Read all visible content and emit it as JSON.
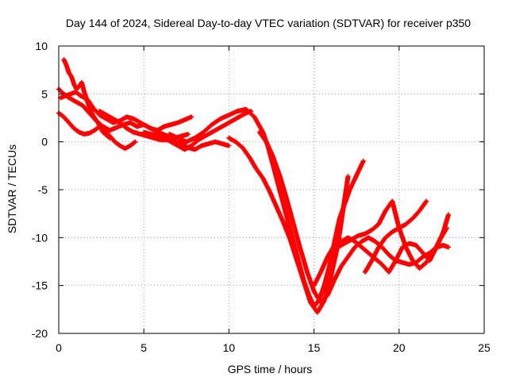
{
  "chart_data": {
    "type": "scatter",
    "title": "Day 144 of 2024, Sidereal Day-to-day VTEC variation (SDTVAR) for receiver p350",
    "xlabel": "GPS time / hours",
    "ylabel": "SDTVAR / TECUs",
    "xlim": [
      0,
      25
    ],
    "ylim": [
      -20,
      10
    ],
    "x_ticks": [
      0,
      5,
      10,
      15,
      20,
      25
    ],
    "y_ticks": [
      -20,
      -15,
      -10,
      -5,
      0,
      5,
      10
    ],
    "grid": true,
    "marker": "plus",
    "color": "#ff0000",
    "series": [
      {
        "x": [
          0.0,
          0.3,
          0.6,
          1.0,
          1.4,
          1.8,
          2.2,
          2.6,
          3.0,
          3.4,
          3.8,
          4.2,
          4.6,
          5.0,
          5.4,
          5.8,
          6.2,
          6.6,
          7.0,
          7.4,
          7.8
        ],
        "y": [
          5.5,
          5.0,
          4.6,
          4.2,
          3.8,
          3.0,
          2.2,
          1.6,
          1.2,
          1.5,
          1.8,
          2.0,
          1.6,
          1.8,
          1.4,
          1.2,
          1.6,
          1.8,
          2.0,
          2.3,
          2.6
        ]
      },
      {
        "x": [
          0.1,
          0.4,
          0.7,
          1.0,
          1.3,
          1.7,
          2.0,
          2.4,
          2.8,
          3.2,
          3.6,
          4.0,
          4.4,
          4.8,
          5.2,
          5.6,
          6.0,
          6.4,
          6.8,
          7.2,
          7.6
        ],
        "y": [
          4.6,
          4.8,
          5.0,
          5.2,
          4.8,
          4.4,
          3.6,
          2.8,
          2.4,
          2.0,
          2.2,
          2.6,
          2.4,
          2.0,
          1.6,
          1.2,
          0.9,
          0.6,
          0.4,
          0.6,
          0.8
        ]
      },
      {
        "x": [
          0.3,
          0.45,
          0.6,
          0.75,
          0.9,
          1.05,
          1.2,
          1.35,
          1.5,
          1.65,
          1.8,
          2.0,
          2.3,
          2.6,
          3.0
        ],
        "y": [
          8.6,
          8.0,
          7.2,
          6.8,
          6.0,
          5.5,
          5.8,
          6.2,
          5.2,
          4.4,
          3.6,
          2.8,
          2.0,
          1.0,
          0.4
        ]
      },
      {
        "x": [
          0.0,
          0.3,
          0.6,
          0.9,
          1.2,
          1.5,
          1.8,
          2.1,
          2.4,
          2.7,
          3.0,
          3.3,
          3.6,
          3.9,
          4.2,
          4.5
        ],
        "y": [
          3.0,
          2.6,
          2.0,
          1.4,
          1.0,
          0.8,
          0.9,
          1.2,
          1.6,
          1.2,
          0.6,
          0.0,
          -0.4,
          -0.7,
          -0.4,
          0.0
        ]
      },
      {
        "x": [
          2.4,
          2.8,
          3.2,
          3.6,
          4.0,
          4.4,
          4.8,
          5.2,
          5.6,
          6.0,
          6.4,
          6.8,
          7.2,
          7.6,
          8.0,
          8.4,
          8.8,
          9.2,
          9.6,
          10.0
        ],
        "y": [
          3.2,
          2.8,
          2.4,
          2.0,
          1.4,
          1.0,
          0.8,
          0.6,
          0.4,
          0.2,
          0.2,
          0.0,
          -0.2,
          -0.6,
          -0.8,
          -0.4,
          -0.2,
          0.0,
          -0.2,
          -0.4
        ]
      },
      {
        "x": [
          5.0,
          5.4,
          5.8,
          6.2,
          6.6,
          7.0,
          7.4,
          7.8,
          8.2,
          8.6,
          9.0,
          9.4,
          9.8,
          10.2,
          10.6,
          11.0,
          11.3
        ],
        "y": [
          1.0,
          0.8,
          0.6,
          0.4,
          0.0,
          -0.4,
          -0.8,
          -0.4,
          0.2,
          0.6,
          1.0,
          1.4,
          1.8,
          2.2,
          2.6,
          3.0,
          3.2
        ]
      },
      {
        "x": [
          6.5,
          7.0,
          7.5,
          8.0,
          8.5,
          9.0,
          9.5,
          10.0,
          10.5,
          11.0,
          11.5,
          12.0,
          12.3,
          12.6,
          12.9,
          13.2,
          13.5,
          13.8,
          14.1,
          14.4,
          14.7,
          15.0,
          15.3,
          15.6,
          15.9,
          16.2,
          16.5,
          16.8,
          17.1,
          17.5,
          17.9
        ],
        "y": [
          0.8,
          0.4,
          0.0,
          0.4,
          1.0,
          1.8,
          2.4,
          2.8,
          3.2,
          3.4,
          2.6,
          1.0,
          -0.5,
          -2.5,
          -4.5,
          -6.5,
          -8.5,
          -10.5,
          -12.5,
          -14.5,
          -16.0,
          -17.2,
          -16.5,
          -15.0,
          -13.0,
          -10.5,
          -8.0,
          -6.5,
          -5.0,
          -3.5,
          -2.0
        ]
      },
      {
        "x": [
          10.0,
          10.4,
          10.8,
          11.2,
          11.6,
          12.0,
          12.4,
          12.8,
          13.2,
          13.6,
          14.0,
          14.4,
          14.8,
          15.2,
          15.6,
          16.0,
          16.4,
          16.8,
          17.0
        ],
        "y": [
          0.4,
          0.0,
          -0.6,
          -1.6,
          -2.8,
          -3.8,
          -5.2,
          -6.8,
          -8.4,
          -10.2,
          -12.4,
          -14.6,
          -16.8,
          -17.8,
          -16.6,
          -14.0,
          -10.8,
          -6.0,
          -3.6
        ]
      },
      {
        "x": [
          11.8,
          12.2,
          12.6,
          13.0,
          13.4,
          13.8,
          14.2,
          14.6,
          15.0,
          15.4,
          15.8,
          16.2,
          16.6,
          17.0,
          17.4,
          17.8,
          18.2,
          18.6,
          19.0,
          19.4,
          19.8,
          20.2,
          20.6,
          21.0,
          21.4,
          21.8,
          22.2,
          22.6,
          22.9
        ],
        "y": [
          1.0,
          0.0,
          -1.6,
          -3.6,
          -6.0,
          -8.6,
          -11.2,
          -13.6,
          -15.6,
          -16.8,
          -16.0,
          -14.4,
          -13.0,
          -12.0,
          -11.0,
          -10.4,
          -10.0,
          -10.4,
          -11.0,
          -11.8,
          -12.4,
          -12.6,
          -12.8,
          -12.6,
          -12.0,
          -11.6,
          -11.0,
          -10.8,
          -11.0
        ]
      },
      {
        "x": [
          15.0,
          15.4,
          15.8,
          16.2,
          16.6,
          17.0,
          17.4,
          17.8,
          18.2,
          18.6,
          19.0,
          19.4,
          19.8,
          20.2,
          20.6,
          21.0,
          21.4,
          21.8,
          22.2,
          22.6,
          22.9
        ],
        "y": [
          -15.0,
          -13.6,
          -12.0,
          -10.8,
          -10.4,
          -10.0,
          -10.4,
          -11.0,
          -11.6,
          -12.2,
          -12.8,
          -13.6,
          -12.4,
          -11.0,
          -10.6,
          -10.8,
          -11.6,
          -12.4,
          -11.0,
          -9.4,
          -7.6
        ]
      },
      {
        "x": [
          16.0,
          16.4,
          16.8,
          17.2,
          17.6,
          18.0,
          18.4,
          18.8,
          19.2,
          19.6,
          20.0,
          20.4,
          20.8,
          21.2,
          21.6,
          22.0,
          22.4,
          22.8
        ],
        "y": [
          -11.6,
          -11.0,
          -10.6,
          -10.2,
          -9.8,
          -9.6,
          -9.2,
          -8.6,
          -7.2,
          -6.2,
          -9.0,
          -11.0,
          -12.4,
          -13.2,
          -12.6,
          -11.6,
          -10.2,
          -9.0
        ]
      },
      {
        "x": [
          18.0,
          18.4,
          18.8,
          19.2,
          19.6,
          20.0,
          20.4,
          20.8,
          21.2,
          21.6
        ],
        "y": [
          -13.6,
          -12.4,
          -11.0,
          -10.0,
          -9.4,
          -9.0,
          -8.6,
          -8.0,
          -7.2,
          -6.2
        ]
      }
    ]
  }
}
